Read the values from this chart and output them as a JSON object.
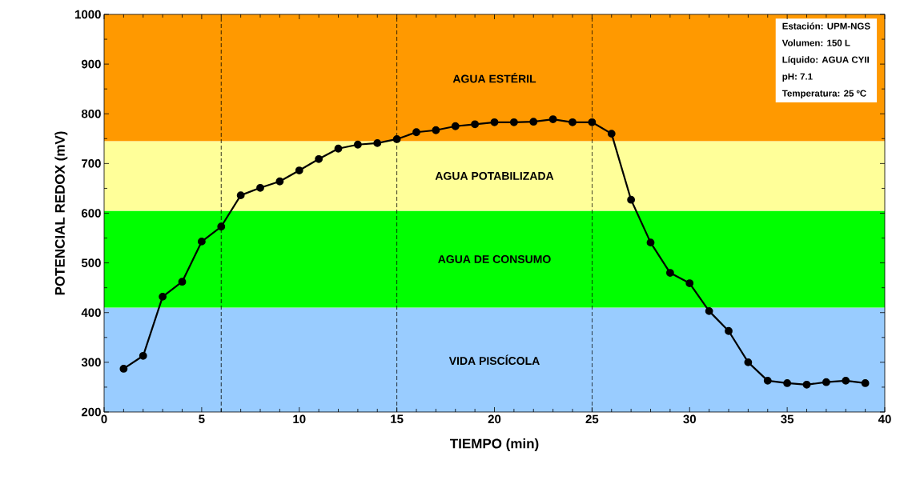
{
  "chart_data": {
    "type": "line",
    "xlabel": "TIEMPO (min)",
    "ylabel": "POTENCIAL REDOX (mV)",
    "x": [
      1,
      2,
      3,
      4,
      5,
      6,
      7,
      8,
      9,
      10,
      11,
      12,
      13,
      14,
      15,
      16,
      17,
      18,
      19,
      20,
      21,
      22,
      23,
      24,
      25,
      26,
      27,
      28,
      29,
      30,
      31,
      32,
      33,
      34,
      35,
      36,
      37,
      38,
      39
    ],
    "series": [
      {
        "color": "#000000",
        "values": [
          287,
          313,
          432,
          462,
          543,
          573,
          636,
          651,
          664,
          686,
          709,
          730,
          738,
          741,
          749,
          763,
          767,
          775,
          779,
          783,
          783,
          784,
          789,
          783,
          783,
          760,
          627,
          541,
          480,
          459,
          403,
          363,
          300,
          263,
          258,
          255,
          260,
          263,
          258
        ]
      }
    ],
    "xlim": [
      0,
      40
    ],
    "ylim": [
      200,
      1000
    ],
    "xticks": [
      0,
      5,
      10,
      15,
      20,
      25,
      30,
      35,
      40
    ],
    "yticks": [
      200,
      300,
      400,
      500,
      600,
      700,
      800,
      900,
      1000
    ],
    "marker": "circle",
    "line_style": "solid",
    "grid": false,
    "bands": [
      {
        "axis": "y",
        "from": 200,
        "to": 410,
        "label": "VIDA PISCÍCOLA",
        "color": "#99ccff"
      },
      {
        "axis": "y",
        "from": 410,
        "to": 605,
        "label": "AGUA DE CONSUMO",
        "color": "#00ff00"
      },
      {
        "axis": "y",
        "from": 605,
        "to": 745,
        "label": "AGUA POTABILIZADA",
        "color": "#ffff99"
      },
      {
        "axis": "y",
        "from": 745,
        "to": 1000,
        "label": "AGUA ESTÉRIL",
        "color": "#ff9900"
      }
    ],
    "ref_lines": [
      {
        "axis": "x",
        "value": 6,
        "line_style": "dashed",
        "color": "#000000"
      },
      {
        "axis": "x",
        "value": 15,
        "line_style": "dashed",
        "color": "#000000"
      },
      {
        "axis": "x",
        "value": 25,
        "line_style": "dashed",
        "color": "#000000"
      }
    ],
    "annotations": [
      "Estación: UPM-NGS",
      "Volumen: 150 L",
      "Líquido: AGUA CYII",
      "pH:  7.1",
      "Temperatura: 25 ºC"
    ]
  }
}
